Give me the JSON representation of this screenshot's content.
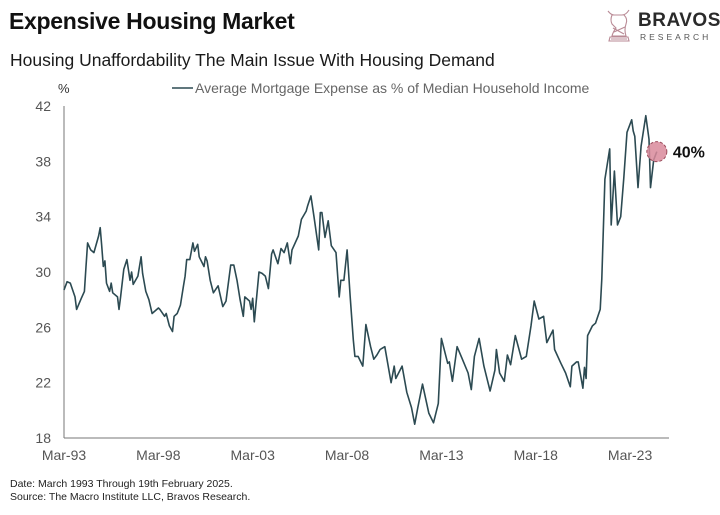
{
  "header": {
    "title": "Expensive Housing Market",
    "subtitle": "Housing Unaffordability The Main Issue With Housing Demand"
  },
  "logo": {
    "name": "BRAVOS",
    "sub": "RESEARCH",
    "icon": "bull-chess-knight-icon",
    "color": "#b98a95"
  },
  "footer": {
    "date_note": "Date: March 1993 Through 19th February 2025.",
    "source": "Source: The Macro Institute LLC, Bravos Research."
  },
  "chart_data": {
    "type": "line",
    "title": "",
    "ylabel": "%",
    "xlabel": "",
    "ylim": [
      18,
      42
    ],
    "yticks": [
      "18",
      "22",
      "26",
      "30",
      "34",
      "38",
      "42"
    ],
    "xticks": [
      "Mar-93",
      "Mar-98",
      "Mar-03",
      "Mar-08",
      "Mar-13",
      "Mar-18",
      "Mar-23"
    ],
    "grid": false,
    "legend": "top-center",
    "line_color": "#2c4a52",
    "annotation": {
      "label": "40%",
      "color": "#d98a9b"
    },
    "series": [
      {
        "name": "Average Mortgage Expense as % of Median Household Income",
        "x": [
          "1993-03",
          "1993-05",
          "1993-07",
          "1993-10",
          "1993-11",
          "1994-02",
          "1994-04",
          "1994-05",
          "1994-06",
          "1994-08",
          "1994-10",
          "1995-01",
          "1995-02",
          "1995-03",
          "1995-04",
          "1995-05",
          "1995-06",
          "1995-08",
          "1995-09",
          "1995-10",
          "1996-01",
          "1996-02",
          "1996-03",
          "1996-05",
          "1996-07",
          "1996-09",
          "1996-10",
          "1996-11",
          "1997-02",
          "1997-04",
          "1997-05",
          "1997-07",
          "1997-09",
          "1997-11",
          "1998-03",
          "1998-04",
          "1998-07",
          "1998-08",
          "1998-10",
          "1998-12",
          "1999-01",
          "1999-03",
          "1999-05",
          "1999-07",
          "1999-08",
          "1999-09",
          "1999-11",
          "2000-01",
          "2000-02",
          "2000-04",
          "2000-05",
          "2000-08",
          "2000-09",
          "2000-10",
          "2000-12",
          "2001-02",
          "2001-05",
          "2001-08",
          "2001-10",
          "2002-01",
          "2002-03",
          "2002-05",
          "2002-07",
          "2002-09",
          "2002-10",
          "2003-01",
          "2003-02",
          "2003-03",
          "2003-04",
          "2003-07",
          "2003-09",
          "2003-11",
          "2004-01",
          "2004-03",
          "2004-04",
          "2004-07",
          "2004-09",
          "2004-11",
          "2005-01",
          "2005-03",
          "2005-04",
          "2005-08",
          "2005-10",
          "2006-01",
          "2006-02",
          "2006-04",
          "2006-06",
          "2006-09",
          "2006-10",
          "2006-11",
          "2007-01",
          "2007-03",
          "2007-05",
          "2007-08",
          "2007-10",
          "2007-11",
          "2008-01",
          "2008-03",
          "2008-05",
          "2008-07",
          "2008-08",
          "2008-10",
          "2009-01",
          "2009-03",
          "2009-06",
          "2009-08",
          "2009-10",
          "2009-12",
          "2010-03",
          "2010-07",
          "2010-09",
          "2010-10",
          "2011-02",
          "2011-05",
          "2011-08",
          "2011-10",
          "2011-12",
          "2012-03",
          "2012-07",
          "2012-10",
          "2013-01",
          "2013-03",
          "2013-07",
          "2013-08",
          "2013-10",
          "2014-01",
          "2014-04",
          "2014-08",
          "2014-10",
          "2014-12",
          "2015-03",
          "2015-06",
          "2015-10",
          "2016-01",
          "2016-02",
          "2016-04",
          "2016-07",
          "2016-09",
          "2016-11",
          "2017-02",
          "2017-06",
          "2017-09",
          "2017-12",
          "2018-02",
          "2018-05",
          "2018-08",
          "2018-10",
          "2019-02",
          "2019-03",
          "2019-07",
          "2019-10",
          "2020-01",
          "2020-02",
          "2020-05",
          "2020-06",
          "2020-09",
          "2020-10",
          "2020-11",
          "2020-12",
          "2021-03",
          "2021-05",
          "2021-08",
          "2021-09",
          "2021-11",
          "2022-02",
          "2022-03",
          "2022-05",
          "2022-07",
          "2022-09",
          "2022-11",
          "2023-01",
          "2023-04",
          "2023-05",
          "2023-06",
          "2023-08",
          "2023-10",
          "2024-01",
          "2024-03",
          "2024-04",
          "2024-06",
          "2024-08"
        ],
        "y": [
          28.7,
          29.3,
          29.2,
          28.2,
          27.3,
          28.1,
          28.6,
          30.4,
          32.1,
          31.6,
          31.4,
          32.6,
          33.2,
          31.9,
          30.4,
          30.8,
          29.2,
          28.6,
          29.2,
          28.5,
          28.2,
          27.3,
          28.2,
          30.2,
          30.9,
          29.4,
          30.0,
          29.1,
          29.7,
          31.1,
          29.9,
          28.6,
          28.0,
          27.0,
          27.4,
          27.3,
          26.8,
          27.0,
          26.1,
          25.7,
          26.8,
          27.0,
          27.6,
          29.0,
          29.7,
          30.9,
          30.9,
          32.1,
          31.5,
          32.0,
          31.1,
          30.4,
          31.1,
          30.8,
          29.4,
          28.5,
          29.0,
          27.5,
          27.9,
          30.5,
          30.5,
          29.4,
          28.0,
          26.8,
          28.2,
          27.9,
          27.3,
          28.1,
          26.4,
          30.0,
          29.9,
          29.7,
          28.8,
          31.3,
          31.6,
          30.6,
          31.7,
          31.4,
          32.1,
          30.6,
          31.6,
          32.6,
          33.8,
          34.4,
          34.8,
          35.5,
          34.0,
          31.6,
          34.3,
          34.3,
          32.5,
          33.7,
          31.9,
          31.4,
          28.2,
          29.4,
          29.4,
          31.6,
          28.2,
          25.1,
          23.9,
          23.9,
          23.2,
          26.2,
          24.6,
          23.7,
          24.0,
          24.4,
          24.6,
          22.0,
          23.2,
          22.3,
          23.2,
          21.3,
          20.2,
          19.0,
          20.2,
          21.9,
          19.8,
          19.1,
          20.5,
          25.2,
          23.4,
          23.5,
          22.1,
          24.6,
          23.8,
          22.7,
          21.5,
          23.9,
          25.2,
          23.2,
          21.4,
          22.9,
          24.4,
          22.7,
          22.1,
          24.0,
          23.3,
          25.4,
          23.7,
          23.9,
          26.1,
          27.9,
          26.6,
          26.8,
          24.9,
          25.8,
          24.4,
          23.4,
          22.7,
          21.7,
          23.2,
          23.5,
          23.5,
          21.6,
          23.1,
          22.3,
          25.4,
          26.1,
          26.3,
          27.3,
          29.5,
          36.7,
          38.9,
          33.4,
          37.3,
          33.4,
          34.0,
          36.8,
          40.1,
          41.0,
          40.2,
          39.8,
          36.1,
          39.1,
          41.3,
          39.6,
          36.1,
          38.1,
          38.7
        ]
      }
    ]
  }
}
